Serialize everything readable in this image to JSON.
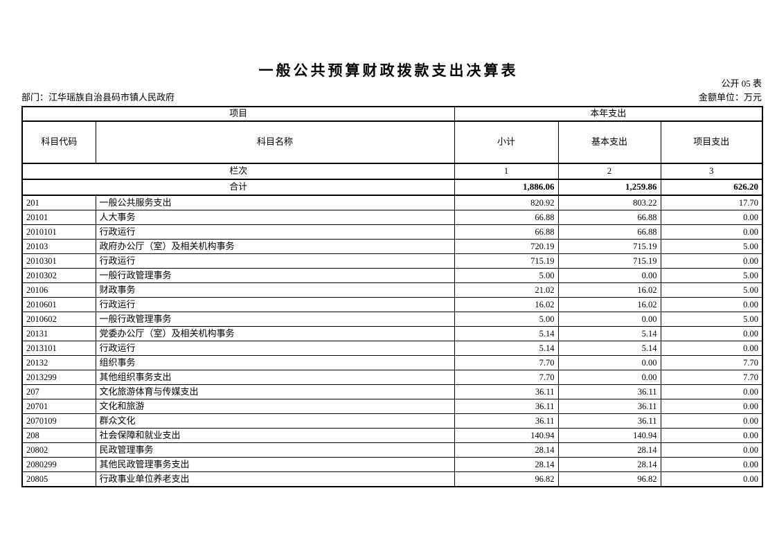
{
  "page": {
    "title": "一般公共预算财政拨款支出决算表",
    "sheet_code": "公开 05 表",
    "department": "部门：江华瑶族自治县码市镇人民政府",
    "unit": "金额单位：万元"
  },
  "table": {
    "header": {
      "group_left": "项目",
      "group_right": "本年支出",
      "col_code": "科目代码",
      "col_name": "科目名称",
      "col_subtotal": "小计",
      "col_basic": "基本支出",
      "col_project": "项目支出"
    },
    "index_row": {
      "label": "栏次",
      "cols": [
        "1",
        "2",
        "3"
      ]
    },
    "total_row": {
      "label": "合计",
      "subtotal": "1,886.06",
      "basic": "1,259.86",
      "project": "626.20"
    },
    "rows": [
      {
        "code": "201",
        "name": "一般公共服务支出",
        "subtotal": "820.92",
        "basic": "803.22",
        "project": "17.70"
      },
      {
        "code": "20101",
        "name": "人大事务",
        "subtotal": "66.88",
        "basic": "66.88",
        "project": "0.00"
      },
      {
        "code": "2010101",
        "name": "行政运行",
        "subtotal": "66.88",
        "basic": "66.88",
        "project": "0.00"
      },
      {
        "code": "20103",
        "name": "政府办公厅（室）及相关机构事务",
        "subtotal": "720.19",
        "basic": "715.19",
        "project": "5.00"
      },
      {
        "code": "2010301",
        "name": "行政运行",
        "subtotal": "715.19",
        "basic": "715.19",
        "project": "0.00"
      },
      {
        "code": "2010302",
        "name": "一般行政管理事务",
        "subtotal": "5.00",
        "basic": "0.00",
        "project": "5.00"
      },
      {
        "code": "20106",
        "name": "财政事务",
        "subtotal": "21.02",
        "basic": "16.02",
        "project": "5.00"
      },
      {
        "code": "2010601",
        "name": "行政运行",
        "subtotal": "16.02",
        "basic": "16.02",
        "project": "0.00"
      },
      {
        "code": "2010602",
        "name": "一般行政管理事务",
        "subtotal": "5.00",
        "basic": "0.00",
        "project": "5.00"
      },
      {
        "code": "20131",
        "name": "党委办公厅（室）及相关机构事务",
        "subtotal": "5.14",
        "basic": "5.14",
        "project": "0.00"
      },
      {
        "code": "2013101",
        "name": "行政运行",
        "subtotal": "5.14",
        "basic": "5.14",
        "project": "0.00"
      },
      {
        "code": "20132",
        "name": "组织事务",
        "subtotal": "7.70",
        "basic": "0.00",
        "project": "7.70"
      },
      {
        "code": "2013299",
        "name": "其他组织事务支出",
        "subtotal": "7.70",
        "basic": "0.00",
        "project": "7.70"
      },
      {
        "code": "207",
        "name": "文化旅游体育与传媒支出",
        "subtotal": "36.11",
        "basic": "36.11",
        "project": "0.00"
      },
      {
        "code": "20701",
        "name": "文化和旅游",
        "subtotal": "36.11",
        "basic": "36.11",
        "project": "0.00"
      },
      {
        "code": "2070109",
        "name": "群众文化",
        "subtotal": "36.11",
        "basic": "36.11",
        "project": "0.00"
      },
      {
        "code": "208",
        "name": "社会保障和就业支出",
        "subtotal": "140.94",
        "basic": "140.94",
        "project": "0.00"
      },
      {
        "code": "20802",
        "name": "民政管理事务",
        "subtotal": "28.14",
        "basic": "28.14",
        "project": "0.00"
      },
      {
        "code": "2080299",
        "name": "其他民政管理事务支出",
        "subtotal": "28.14",
        "basic": "28.14",
        "project": "0.00"
      },
      {
        "code": "20805",
        "name": "行政事业单位养老支出",
        "subtotal": "96.82",
        "basic": "96.82",
        "project": "0.00"
      }
    ]
  }
}
